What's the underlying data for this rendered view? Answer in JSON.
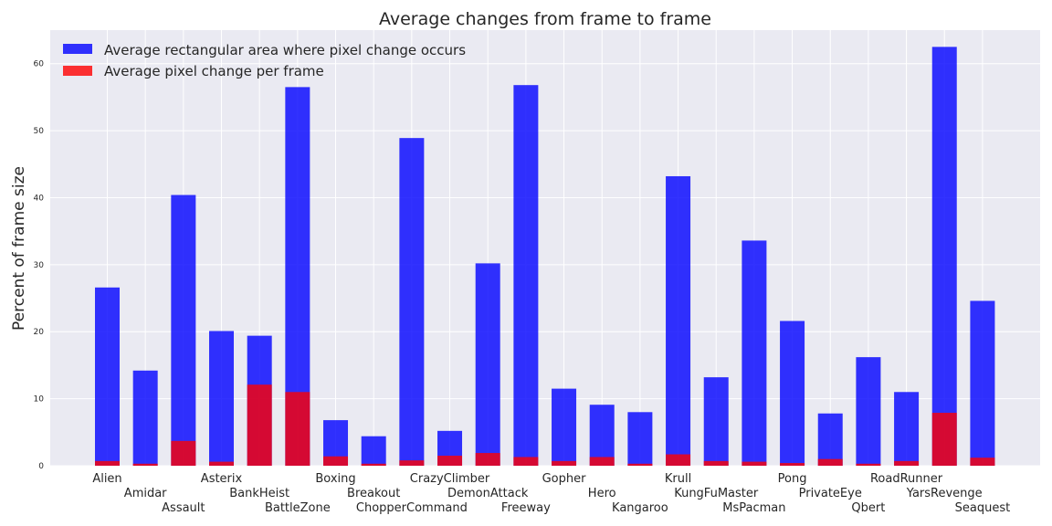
{
  "chart_data": {
    "type": "bar",
    "title": "Average changes from frame to frame",
    "xlabel": "",
    "ylabel": "Percent of frame size",
    "ylim": [
      0,
      65
    ],
    "yticks": [
      0,
      10,
      20,
      30,
      40,
      50,
      60
    ],
    "grid": true,
    "legend_position": "top-left",
    "colors": {
      "area": "#0000ff",
      "pixel": "#ff0000",
      "background": "#eaeaf2",
      "grid": "#ffffff"
    },
    "categories": [
      "Alien",
      "Amidar",
      "Assault",
      "Asterix",
      "BankHeist",
      "BattleZone",
      "Boxing",
      "Breakout",
      "ChopperCommand",
      "CrazyClimber",
      "DemonAttack",
      "Freeway",
      "Gopher",
      "Hero",
      "Kangaroo",
      "Krull",
      "KungFuMaster",
      "MsPacman",
      "Pong",
      "PrivateEye",
      "Qbert",
      "RoadRunner",
      "YarsRevenge",
      "Seaquest"
    ],
    "series": [
      {
        "name": "Average rectangular area where pixel change occurs",
        "values": [
          26.6,
          14.2,
          40.4,
          20.1,
          19.4,
          56.5,
          6.8,
          4.4,
          48.9,
          5.2,
          30.2,
          56.8,
          11.5,
          9.1,
          8.0,
          43.2,
          13.2,
          33.6,
          21.6,
          7.8,
          16.2,
          11.0,
          62.5,
          24.6
        ]
      },
      {
        "name": "Average pixel change per frame",
        "values": [
          0.7,
          0.3,
          3.7,
          0.6,
          12.1,
          11.0,
          1.4,
          0.3,
          0.8,
          1.5,
          1.9,
          1.3,
          0.7,
          1.3,
          0.3,
          1.7,
          0.7,
          0.6,
          0.4,
          1.0,
          0.3,
          0.7,
          7.9,
          1.2
        ]
      }
    ]
  }
}
